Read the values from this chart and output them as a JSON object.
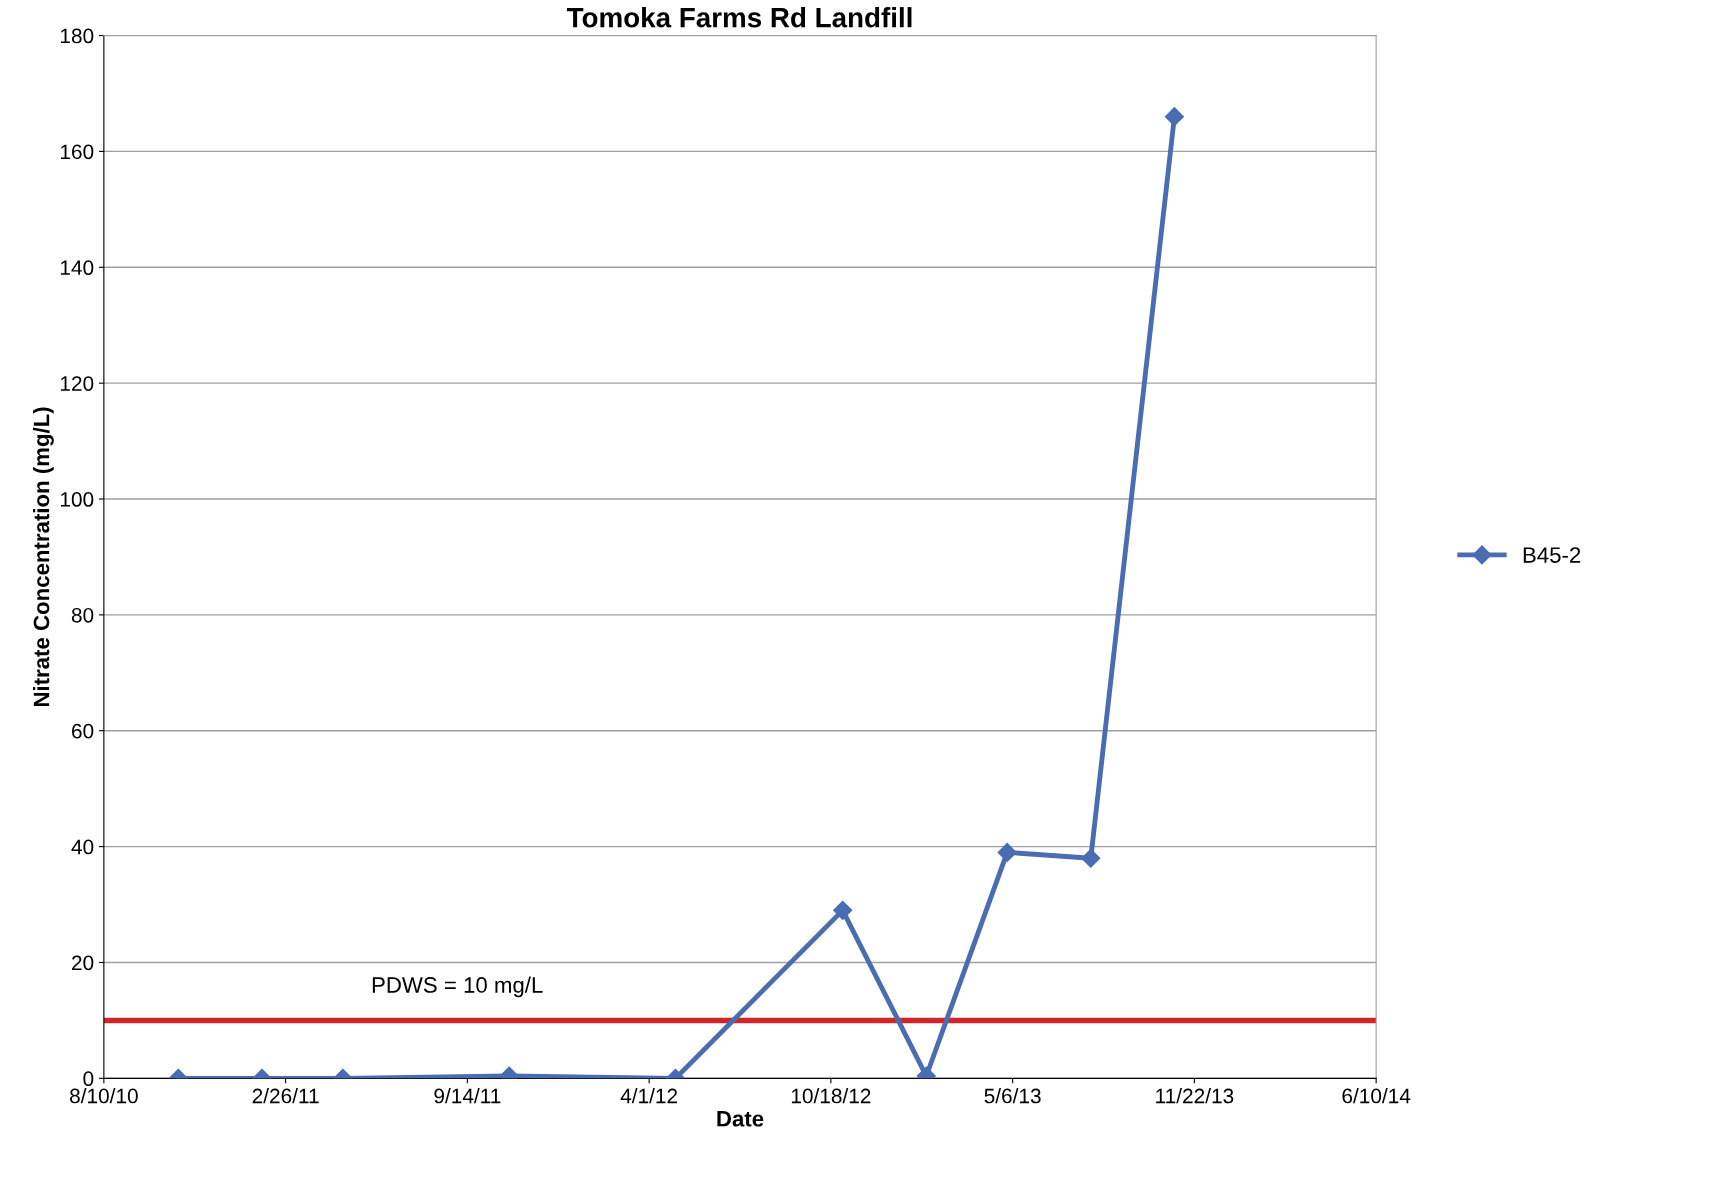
{
  "chart_data": {
    "type": "line",
    "title": "Tomoka Farms Rd Landfill",
    "xlabel": "Date",
    "ylabel": "Nitrate Concentration (mg/L)",
    "x": [
      "2010-10-31",
      "2011-01-31",
      "2011-04-30",
      "2011-10-30",
      "2012-04-30",
      "2012-10-31",
      "2013-01-31",
      "2013-04-30",
      "2013-07-31",
      "2013-10-31"
    ],
    "series": [
      {
        "name": "B45-2",
        "color": "#4a6cb3",
        "values": [
          0,
          0,
          0,
          0.4,
          0,
          29,
          0.4,
          39,
          38,
          166
        ]
      }
    ],
    "xlim": [
      "2010-08-10",
      "2014-06-10"
    ],
    "xticks": [
      {
        "value": "2010-08-10",
        "label": "8/10/10"
      },
      {
        "value": "2011-02-26",
        "label": "2/26/11"
      },
      {
        "value": "2011-09-14",
        "label": "9/14/11"
      },
      {
        "value": "2012-04-01",
        "label": "4/1/12"
      },
      {
        "value": "2012-10-18",
        "label": "10/18/12"
      },
      {
        "value": "2013-05-06",
        "label": "5/6/13"
      },
      {
        "value": "2013-11-22",
        "label": "11/22/13"
      },
      {
        "value": "2014-06-10",
        "label": "6/10/14"
      }
    ],
    "ylim": [
      0,
      180
    ],
    "yticks": [
      0,
      20,
      40,
      60,
      80,
      100,
      120,
      140,
      160,
      180
    ],
    "ref_lines": [
      {
        "axis": "y",
        "value": 10,
        "label": "PDWS = 10 mg/L",
        "color": "#d0262a"
      }
    ],
    "grid": "y",
    "legend": "right",
    "marker": "diamond",
    "line_style": "solid"
  }
}
